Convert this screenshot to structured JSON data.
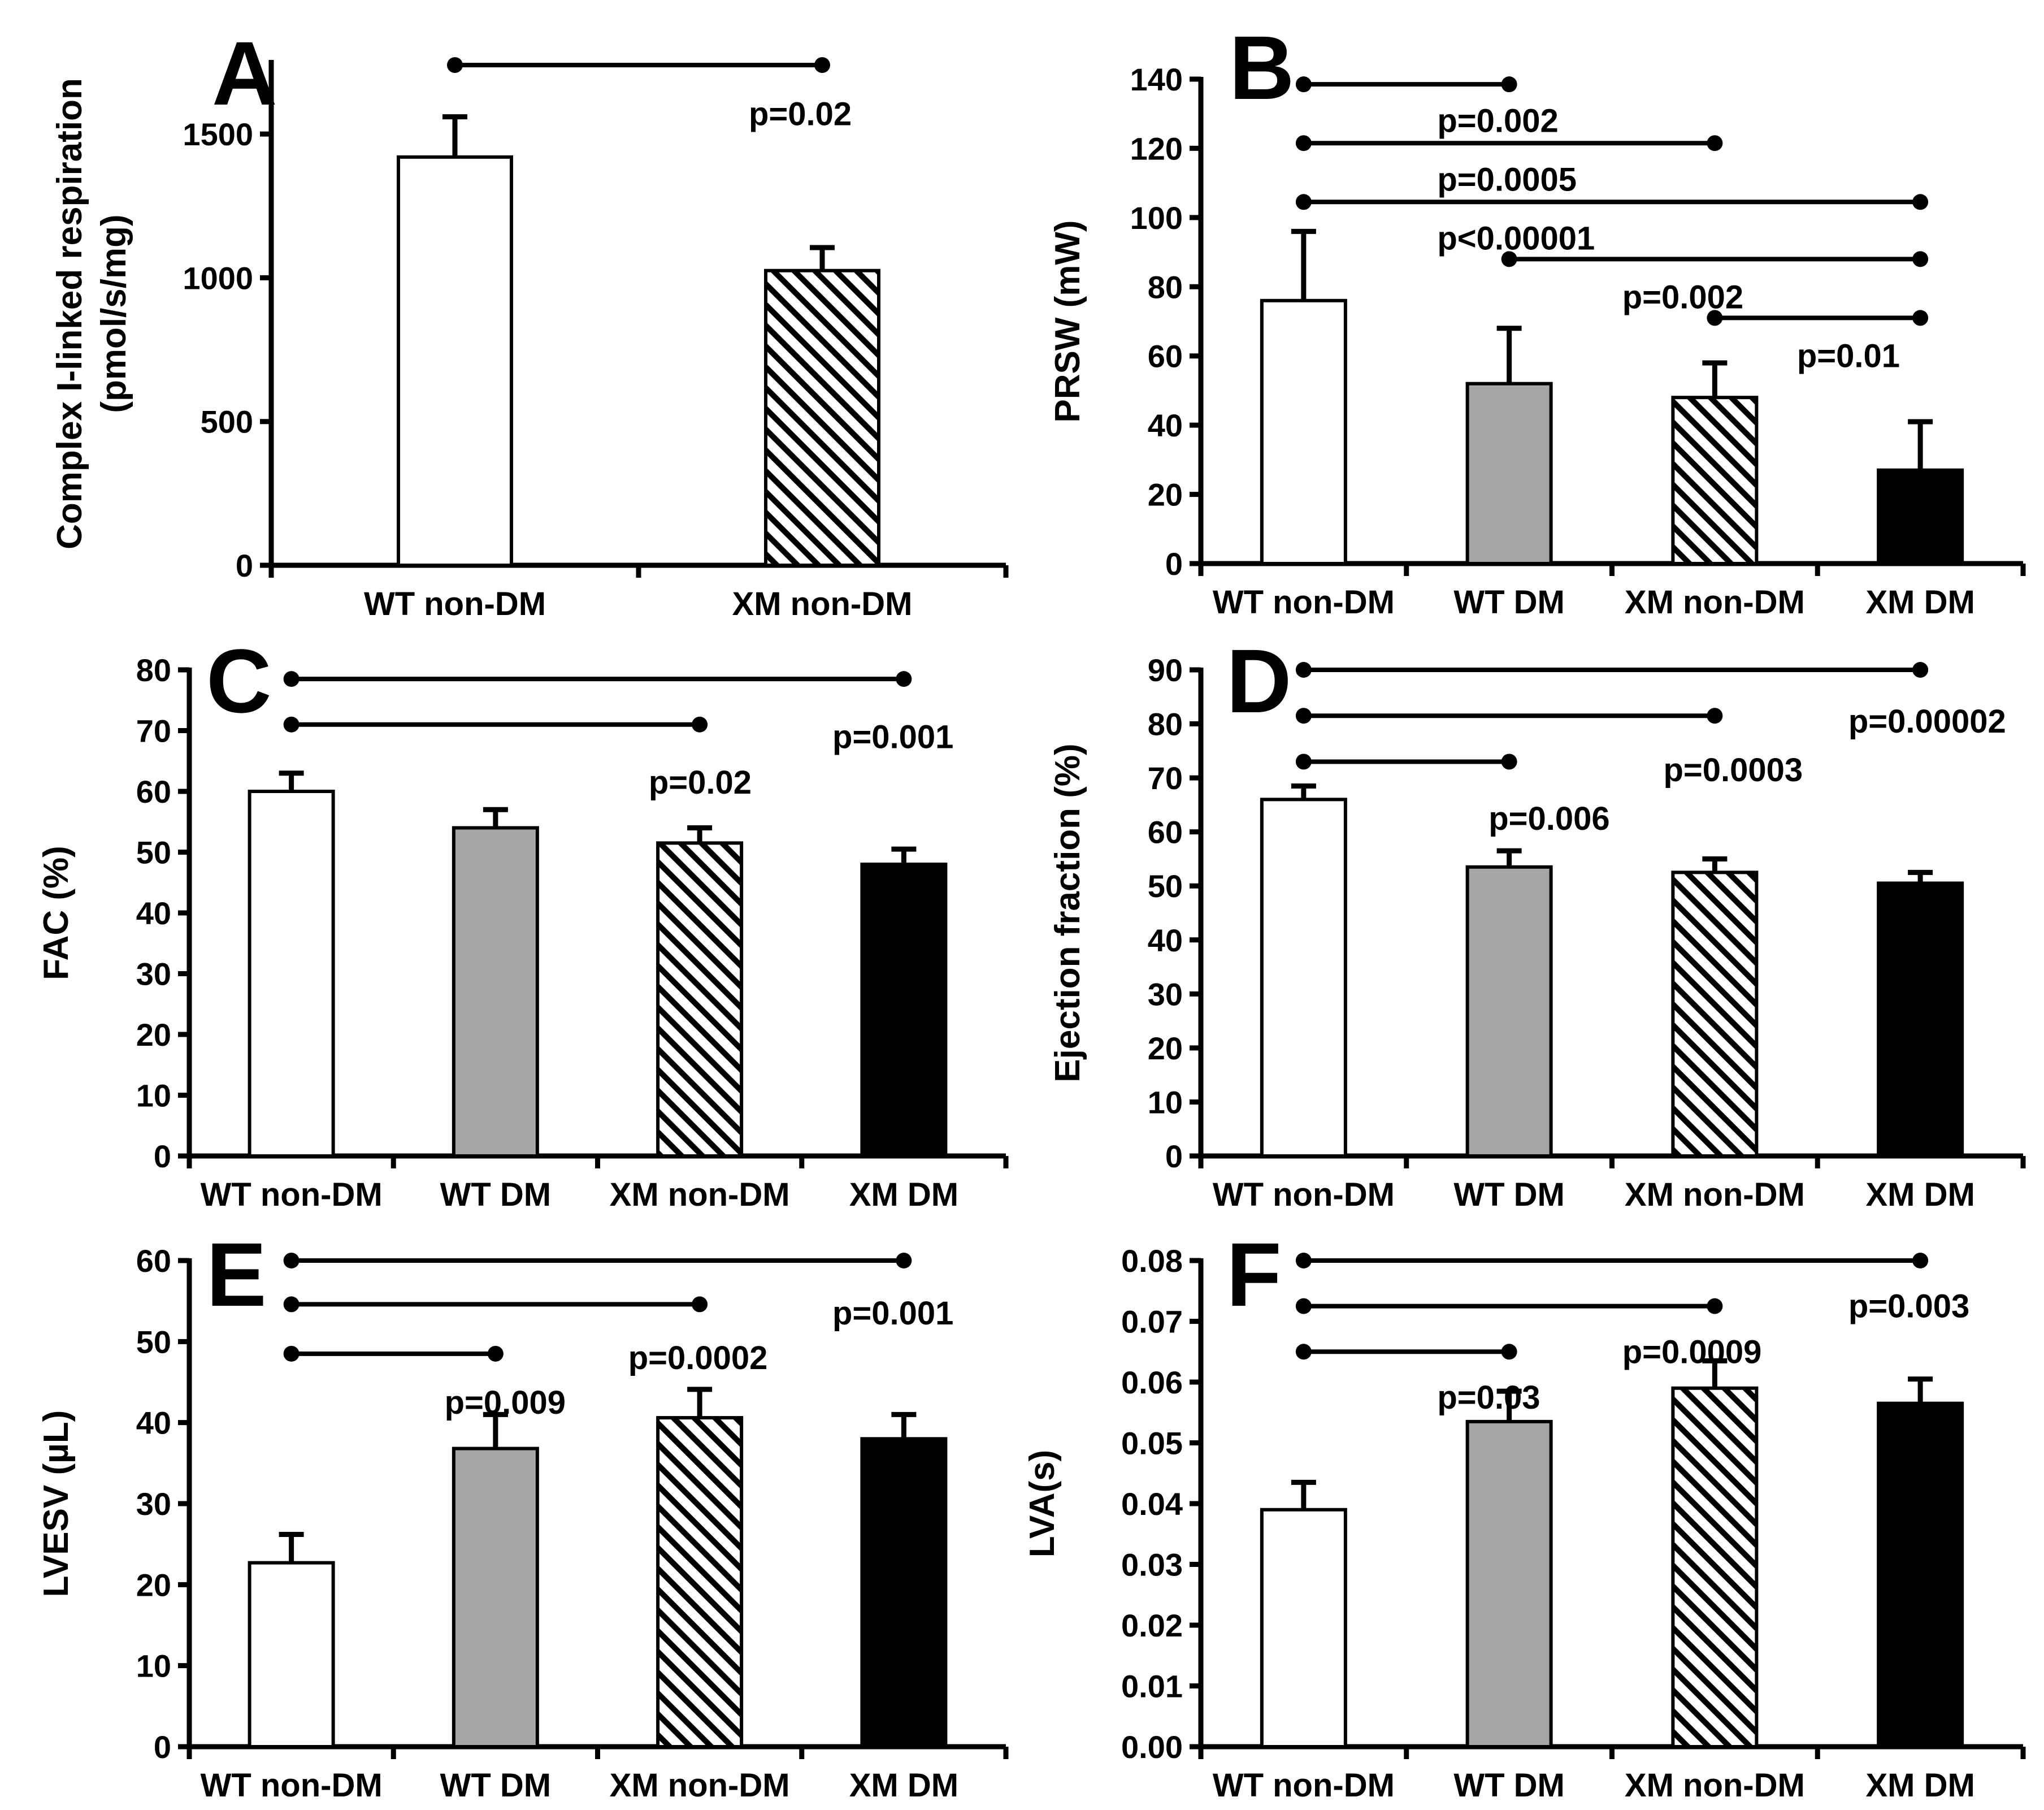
{
  "figure": {
    "colors": {
      "background": "#ffffff",
      "ink": "#000000",
      "wt_dm_fill": "#a6a6a6",
      "xm_dm_fill": "#000000",
      "open_fill": "#ffffff"
    }
  },
  "chart_data": [
    {
      "panel": "A",
      "type": "bar",
      "categories": [
        "WT non-DM",
        "XM non-DM"
      ],
      "fills": [
        "open",
        "hatch"
      ],
      "values": [
        1420,
        1025
      ],
      "errors": [
        140,
        80
      ],
      "ylabel": "Complex I-linked respiration\n(pmol/s/mg)",
      "ylim": [
        0,
        1750
      ],
      "yticks": [
        0,
        500,
        1000,
        1500
      ],
      "ytick_labels": [
        "0",
        "500",
        "1000",
        "1500"
      ],
      "comparisons": [
        {
          "from": 0,
          "to": 1,
          "y": 1740,
          "label": "p=0.02",
          "label_x": 0.8,
          "label_y": 1570
        }
      ]
    },
    {
      "panel": "B",
      "type": "bar",
      "categories": [
        "WT non-DM",
        "WT DM",
        "XM non-DM",
        "XM DM"
      ],
      "fills": [
        "open",
        "gray",
        "hatch",
        "solid"
      ],
      "values": [
        76,
        52,
        48,
        27
      ],
      "errors": [
        20,
        16,
        10,
        14
      ],
      "ylabel": "PRSW (mW)",
      "ylim": [
        0,
        140
      ],
      "yticks": [
        0,
        20,
        40,
        60,
        80,
        100,
        120,
        140
      ],
      "ytick_labels": [
        "0",
        "20",
        "40",
        "60",
        "80",
        "100",
        "120",
        "140"
      ],
      "comparisons": [
        {
          "from": 0,
          "to": 1,
          "y": 138.5,
          "label": "p=0.002",
          "label_x": 0.65,
          "label_y": 128
        },
        {
          "from": 0,
          "to": 2,
          "y": 121.5,
          "label": "p=0.0005",
          "label_x": 0.65,
          "label_y": 111
        },
        {
          "from": 0,
          "to": 3,
          "y": 104.5,
          "label": "p<0.00001",
          "label_x": 0.65,
          "label_y": 94
        },
        {
          "from": 1,
          "to": 3,
          "y": 88,
          "label": "p=0.002",
          "label_x": 1.55,
          "label_y": 77
        },
        {
          "from": 2,
          "to": 3,
          "y": 71,
          "label": "p=0.01",
          "label_x": 2.4,
          "label_y": 60
        }
      ]
    },
    {
      "panel": "C",
      "type": "bar",
      "categories": [
        "WT non-DM",
        "WT DM",
        "XM non-DM",
        "XM DM"
      ],
      "fills": [
        "open",
        "gray",
        "hatch",
        "solid"
      ],
      "values": [
        60,
        54,
        51.5,
        48
      ],
      "errors": [
        3,
        3,
        2.5,
        2.5
      ],
      "ylabel": "FAC (%)",
      "ylim": [
        0,
        80
      ],
      "yticks": [
        0,
        10,
        20,
        30,
        40,
        50,
        60,
        70,
        80
      ],
      "ytick_labels": [
        "0",
        "10",
        "20",
        "30",
        "40",
        "50",
        "60",
        "70",
        "80"
      ],
      "comparisons": [
        {
          "from": 0,
          "to": 3,
          "y": 78.5,
          "label": "p=0.001",
          "label_x": 2.65,
          "label_y": 69
        },
        {
          "from": 0,
          "to": 2,
          "y": 71,
          "label": "p=0.02",
          "label_x": 1.75,
          "label_y": 61.5
        }
      ]
    },
    {
      "panel": "D",
      "type": "bar",
      "categories": [
        "WT non-DM",
        "WT DM",
        "XM non-DM",
        "XM DM"
      ],
      "fills": [
        "open",
        "gray",
        "hatch",
        "solid"
      ],
      "values": [
        66,
        53.5,
        52.5,
        50.5
      ],
      "errors": [
        2.5,
        3,
        2.5,
        2
      ],
      "ylabel": "Ejection fraction (%)",
      "ylim": [
        0,
        90
      ],
      "yticks": [
        0,
        10,
        20,
        30,
        40,
        50,
        60,
        70,
        80,
        90
      ],
      "ytick_labels": [
        "0",
        "10",
        "20",
        "30",
        "40",
        "50",
        "60",
        "70",
        "80",
        "90"
      ],
      "comparisons": [
        {
          "from": 0,
          "to": 3,
          "y": 90,
          "label": "p=0.00002",
          "label_x": 2.65,
          "label_y": 80.5
        },
        {
          "from": 0,
          "to": 2,
          "y": 81.5,
          "label": "p=0.0003",
          "label_x": 1.75,
          "label_y": 71.5
        },
        {
          "from": 0,
          "to": 1,
          "y": 73,
          "label": "p=0.006",
          "label_x": 0.9,
          "label_y": 62.5
        }
      ]
    },
    {
      "panel": "E",
      "type": "bar",
      "categories": [
        "WT non-DM",
        "WT DM",
        "XM non-DM",
        "XM DM"
      ],
      "fills": [
        "open",
        "gray",
        "hatch",
        "solid"
      ],
      "values": [
        22.7,
        36.8,
        40.6,
        38
      ],
      "errors": [
        3.5,
        4.2,
        3.5,
        3
      ],
      "ylabel": "LVESV (µL)",
      "ylim": [
        0,
        60
      ],
      "yticks": [
        0,
        10,
        20,
        30,
        40,
        50,
        60
      ],
      "ytick_labels": [
        "0",
        "10",
        "20",
        "30",
        "40",
        "50",
        "60"
      ],
      "comparisons": [
        {
          "from": 0,
          "to": 3,
          "y": 60,
          "label": "p=0.001",
          "label_x": 2.65,
          "label_y": 53.5
        },
        {
          "from": 0,
          "to": 2,
          "y": 54.6,
          "label": "p=0.0002",
          "label_x": 1.65,
          "label_y": 48
        },
        {
          "from": 0,
          "to": 1,
          "y": 48.5,
          "label": "p=0.009",
          "label_x": 0.75,
          "label_y": 42.5
        }
      ]
    },
    {
      "panel": "F",
      "type": "bar",
      "categories": [
        "WT non-DM",
        "WT DM",
        "XM non-DM",
        "XM DM"
      ],
      "fills": [
        "open",
        "gray",
        "hatch",
        "solid"
      ],
      "values": [
        0.039,
        0.0535,
        0.059,
        0.0565
      ],
      "errors": [
        0.0045,
        0.005,
        0.0045,
        0.004
      ],
      "ylabel": "LVA(s)",
      "ylim": [
        0,
        0.08
      ],
      "yticks": [
        0,
        0.01,
        0.02,
        0.03,
        0.04,
        0.05,
        0.06,
        0.07,
        0.08
      ],
      "ytick_labels": [
        "0.00",
        "0.01",
        "0.02",
        "0.03",
        "0.04",
        "0.05",
        "0.06",
        "0.07",
        "0.08"
      ],
      "comparisons": [
        {
          "from": 0,
          "to": 3,
          "y": 0.08,
          "label": "p=0.003",
          "label_x": 2.65,
          "label_y": 0.0725
        },
        {
          "from": 0,
          "to": 2,
          "y": 0.0725,
          "label": "p=0.0009",
          "label_x": 1.55,
          "label_y": 0.065
        },
        {
          "from": 0,
          "to": 1,
          "y": 0.065,
          "label": "p=0.03",
          "label_x": 0.65,
          "label_y": 0.0575
        }
      ]
    }
  ]
}
